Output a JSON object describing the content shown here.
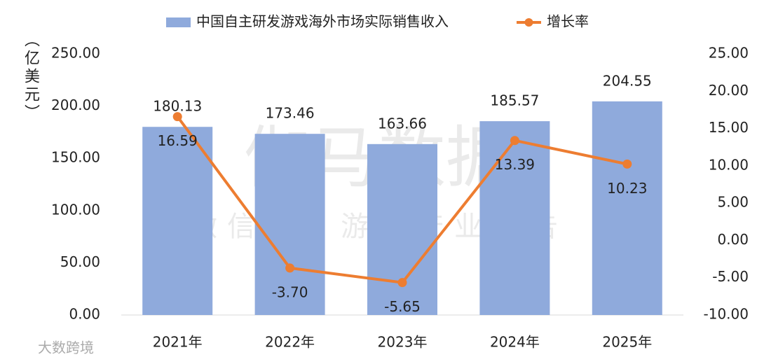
{
  "chart_data": {
    "type": "bar_line",
    "y_axis_label": "（亿美元）",
    "categories": [
      "2021年",
      "2022年",
      "2023年",
      "2024年",
      "2025年"
    ],
    "series": [
      {
        "name": "中国自主研发游戏海外市场实际销售收入",
        "type": "bar",
        "color": "#8faadc",
        "values": [
          180.13,
          173.46,
          163.66,
          185.57,
          204.55
        ],
        "value_labels": [
          "180.13",
          "173.46",
          "163.66",
          "185.57",
          "204.55"
        ]
      },
      {
        "name": "增长率",
        "type": "line",
        "axis": "y2",
        "color": "#ed7d31",
        "values": [
          16.59,
          -3.7,
          -5.65,
          13.39,
          10.23
        ],
        "value_labels": [
          "16.59",
          "-3.70",
          "-5.65",
          "13.39",
          "10.23"
        ]
      }
    ],
    "ylim": [
      0,
      250
    ],
    "yticks": [
      {
        "value": 0,
        "label": "0.00"
      },
      {
        "value": 50,
        "label": "50.00"
      },
      {
        "value": 100,
        "label": "100.00"
      },
      {
        "value": 150,
        "label": "150.00"
      },
      {
        "value": 200,
        "label": "200.00"
      },
      {
        "value": 250,
        "label": "250.00"
      }
    ],
    "y2lim": [
      -10,
      25
    ],
    "y2ticks": [
      {
        "value": -10,
        "label": "-10.00"
      },
      {
        "value": -5,
        "label": "-5.00"
      },
      {
        "value": 0,
        "label": "0.00"
      },
      {
        "value": 5,
        "label": "5.00"
      },
      {
        "value": 10,
        "label": "10.00"
      },
      {
        "value": 15,
        "label": "15.00"
      },
      {
        "value": 20,
        "label": "20.00"
      },
      {
        "value": 25,
        "label": "25.00"
      }
    ],
    "legend": "top",
    "watermarks": [
      "伽马数据",
      "微信号：游戏产业报告",
      "大数跨境"
    ]
  }
}
